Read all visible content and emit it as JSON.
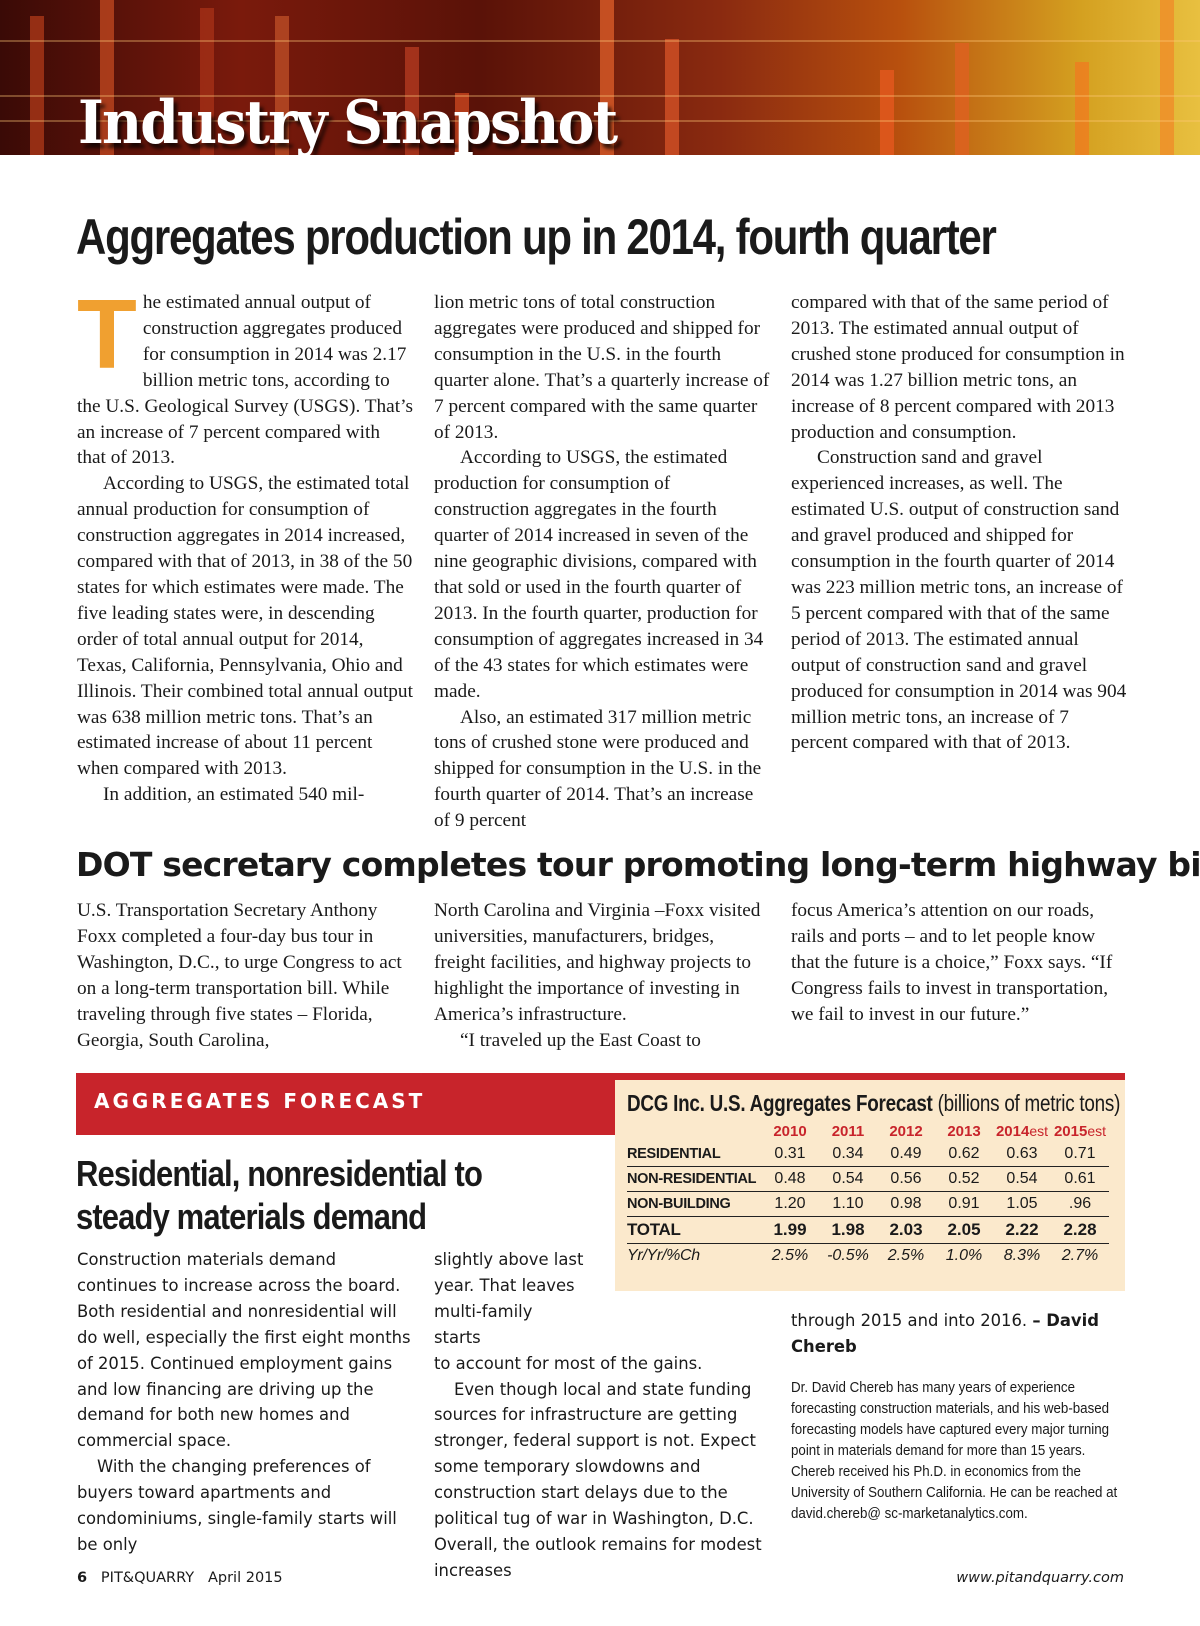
{
  "banner": {
    "title": "Industry Snapshot"
  },
  "article1": {
    "headline": "Aggregates production up in 2014, fourth quarter",
    "drop_cap": "T",
    "col1": [
      "he estimated annual output of construction aggregates produced for consumption in 2014 was 2.17 billion metric tons, according to the U.S. Geological Survey (USGS). That’s an increase of 7 percent compared with that of 2013.",
      "According to USGS, the estimated total annual production for consumption of construction aggregates in 2014 increased, compared with that of 2013, in 38 of the 50 states for which estimates were made. The five leading states were, in descending order of total annual output for 2014, Texas, California, Pennsylvania, Ohio and Illinois. Their combined total annual output was 638 million metric tons. That’s an estimated increase of about 11 percent when compared with 2013.",
      "In addition, an estimated 540 mil-"
    ],
    "col2": [
      "lion metric tons of total construction aggregates were produced and shipped for consumption in the U.S. in the fourth quarter alone. That’s a quarterly increase of 7 percent compared with the same quarter of 2013.",
      "According to USGS, the estimated production for consumption of construction aggregates in the fourth quarter of 2014 increased in seven of the nine geographic divisions, compared with that sold or used in the fourth quarter of 2013. In the fourth quarter, production for consumption of aggregates increased in 34 of the 43 states for which estimates were made.",
      "Also, an estimated 317 million metric tons of crushed stone were produced and shipped for consumption in the U.S. in the fourth quarter of 2014. That’s an increase of 9 percent"
    ],
    "col3": [
      "compared with that of the same period of 2013. The estimated annual output of crushed stone produced for consumption in 2014 was 1.27 billion metric tons, an increase of 8 percent compared with 2013 production and consumption.",
      "Construction sand and gravel experienced increases, as well. The estimated U.S. output of construction sand and gravel produced and shipped for consumption in the fourth quarter of 2014 was 223 million metric tons, an increase of 5 percent compared with that of the same period of 2013. The estimated annual output of construction sand and gravel produced for consumption in 2014 was 904 million metric tons, an increase of 7 percent compared with that of 2013."
    ]
  },
  "article2": {
    "headline": "DOT secretary completes tour promoting long-term highway bill",
    "col1": [
      "U.S. Transportation Secretary Anthony Foxx completed a four-day bus tour in Washington, D.C., to urge Congress to act on a long-term transportation bill. While traveling through five states – Florida, Georgia, South Carolina,"
    ],
    "col2": [
      "North Carolina and Virginia –Foxx visited universities, manufacturers, bridges, freight facilities, and highway projects to highlight the importance of investing in America’s infrastructure.",
      "“I traveled up the East Coast to"
    ],
    "col3": [
      "focus America’s attention on our roads, rails and ports – and to let people know that the future is a choice,” Foxx says. “If Congress fails to invest in transportation, we fail to invest in our future.”"
    ]
  },
  "forecast_section": {
    "label": "AGGREGATES FORECAST"
  },
  "forecast_table": {
    "title_bold": "DCG Inc. U.S. Aggregates Forecast",
    "title_rest": "(billions of metric tons)",
    "years": [
      {
        "y": "2010",
        "s": ""
      },
      {
        "y": "2011",
        "s": ""
      },
      {
        "y": "2012",
        "s": ""
      },
      {
        "y": "2013",
        "s": ""
      },
      {
        "y": "2014",
        "s": "est"
      },
      {
        "y": "2015",
        "s": "est"
      }
    ],
    "rows": [
      {
        "label": "RESIDENTIAL",
        "values": [
          "0.31",
          "0.34",
          "0.49",
          "0.62",
          "0.63",
          "0.71"
        ]
      },
      {
        "label": "NON-RESIDENTIAL",
        "values": [
          "0.48",
          "0.54",
          "0.56",
          "0.52",
          "0.54",
          "0.61"
        ]
      },
      {
        "label": "NON-BUILDING",
        "values": [
          "1.20",
          "1.10",
          "0.98",
          "0.91",
          "1.05",
          ".96"
        ]
      },
      {
        "label": "TOTAL",
        "values": [
          "1.99",
          "1.98",
          "2.03",
          "2.05",
          "2.22",
          "2.28"
        ]
      },
      {
        "label": "Yr/Yr/%Ch",
        "values": [
          "2.5%",
          "-0.5%",
          "2.5%",
          "1.0%",
          "8.3%",
          "2.7%"
        ]
      }
    ]
  },
  "article3": {
    "headline": "Residential, nonresidential to steady materials demand",
    "col1": [
      "Construction materials demand continues to increase across the board. Both residential and nonresidential will do well, especially the first eight months of 2015. Continued employment gains and low financing are driving up the demand for both new homes and commercial space.",
      "With the changing preferences of buyers toward apartments and condominiums, single-family starts will be only"
    ],
    "col2_narrow": "slightly above last year. That leaves multi-family starts",
    "col2": [
      "to account for most of the gains.",
      "Even though local and state funding sources for infrastructure are getting stronger, federal support is not. Expect some temporary slowdowns and construction start delays due to the political tug of war in Washington, D.C. Overall, the outlook remains for modest increases"
    ],
    "col3": "through 2015 and into 2016.",
    "byline": "– David Chereb",
    "bio": "Dr. David Chereb has many years of experience forecasting construction materials, and his web-based forecasting models have captured every major turning point in materials demand for more than 15 years. Chereb received his Ph.D. in economics from the University of Southern California. He can be reached at david.chereb@ sc-marketanalytics.com."
  },
  "footer": {
    "page": "6",
    "magazine": "PIT&QUARRY",
    "issue": "April 2015",
    "url": "www.pitandquarry.com"
  }
}
